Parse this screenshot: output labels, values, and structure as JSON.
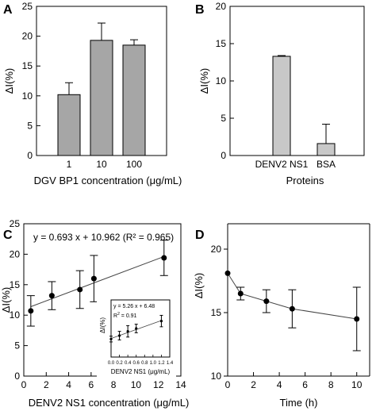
{
  "chart_data": [
    {
      "panel_letter": "A",
      "type": "bar",
      "xlabel": "DGV BP1 concentration (μg/mL)",
      "ylabel": "ΔI(%)",
      "ylim": [
        0,
        25
      ],
      "yticks": [
        0,
        5,
        10,
        15,
        20,
        25
      ],
      "categories": [
        "1",
        "10",
        "100"
      ],
      "values": [
        10.2,
        19.3,
        18.5
      ],
      "errors": [
        2.0,
        2.9,
        0.9
      ],
      "bar_color": "#a6a6a6"
    },
    {
      "panel_letter": "B",
      "type": "bar",
      "xlabel": "Proteins",
      "ylabel": "ΔI(%)",
      "ylim": [
        0,
        20
      ],
      "yticks": [
        0,
        5,
        10,
        15,
        20
      ],
      "categories": [
        "DENV2 NS1",
        "BSA"
      ],
      "values": [
        13.3,
        1.6
      ],
      "errors": [
        0.1,
        2.6
      ],
      "bar_color": "#c8c8c8"
    },
    {
      "panel_letter": "C",
      "type": "scatter",
      "xlabel": "DENV2 NS1 concentration (μg/mL)",
      "ylabel": "ΔI(%)",
      "xlim": [
        0,
        14
      ],
      "xticks": [
        0,
        2,
        4,
        6,
        8,
        10,
        12,
        14
      ],
      "ylim": [
        0,
        25
      ],
      "yticks": [
        0,
        5,
        10,
        15,
        20,
        25
      ],
      "x": [
        0.625,
        2.5,
        5,
        6.25,
        12.5
      ],
      "y": [
        10.7,
        13.2,
        14.2,
        16.0,
        19.4
      ],
      "errors": [
        2.5,
        2.3,
        3.1,
        3.8,
        2.9
      ],
      "fit": {
        "slope": 0.693,
        "intercept": 10.962
      },
      "annotation": "y = 0.693 x + 10.962 (R² = 0.965)",
      "inset": {
        "xlabel": "DENV2 NS1 (μg/mL)",
        "ylabel": "ΔI(%)",
        "xlim": [
          0,
          1.4
        ],
        "xticks": [
          "0.0",
          "0.2",
          "0.4",
          "0.6",
          "0.8",
          "1.0",
          "1.2",
          "1.4"
        ],
        "ylim": [
          0,
          20
        ],
        "x": [
          0.0,
          0.2,
          0.4,
          0.6,
          1.2
        ],
        "y": [
          6.3,
          7.5,
          9.0,
          10.0,
          12.6
        ],
        "errors": [
          1.0,
          1.5,
          2.0,
          1.5,
          2.0
        ],
        "fit": {
          "slope": 5.26,
          "intercept": 6.48
        },
        "equation": "y = 5.26 x + 6.48",
        "r2_label": "R",
        "r2_value": " = 0.91"
      }
    },
    {
      "panel_letter": "D",
      "type": "line",
      "xlabel": "Time (h)",
      "ylabel": "ΔI(%)",
      "xlim": [
        0,
        11
      ],
      "xticks": [
        0,
        2,
        4,
        6,
        8,
        10
      ],
      "ylim": [
        10,
        22
      ],
      "yticks": [
        10,
        15,
        20
      ],
      "x": [
        0,
        1,
        3,
        5,
        10
      ],
      "y": [
        18.1,
        16.5,
        15.9,
        15.3,
        14.5
      ],
      "errors": [
        0.0,
        0.5,
        0.9,
        1.5,
        2.5
      ]
    }
  ]
}
